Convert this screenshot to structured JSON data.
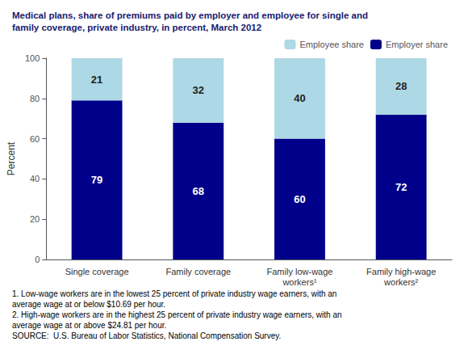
{
  "chart_data": {
    "type": "bar",
    "title": "Medical plans, share of premiums paid by employer and employee for single and\nfamily coverage, private industry, in percent, March 2012",
    "ylabel": "Percent",
    "categories": [
      "Single coverage",
      "Family coverage",
      "Family low-wage\nworkers¹",
      "Family high-wage\nworkers²"
    ],
    "series": [
      {
        "name": "Employer share",
        "color": "#00008B",
        "values": [
          79,
          68,
          60,
          72
        ]
      },
      {
        "name": "Employee share",
        "color": "#ADD8E6",
        "values": [
          21,
          32,
          40,
          28
        ]
      }
    ],
    "stacked": true,
    "data_labels": true,
    "ylim": [
      0,
      100
    ],
    "yticks": [
      0,
      20,
      40,
      60,
      80,
      100
    ],
    "grid": false,
    "legend": "upper right",
    "annotations": [
      "1. Low-wage workers are in the lowest 25 percent of private industry wage earners, with an",
      "average wage at or below $10.69 per hour.",
      "2. High-wage workers are in the highest 25 percent of private industry wage earners, with an",
      "average wage at or above $24.81 per hour.",
      "SOURCE:  U.S. Bureau of Labor Statistics, National Compensation Survey."
    ]
  }
}
